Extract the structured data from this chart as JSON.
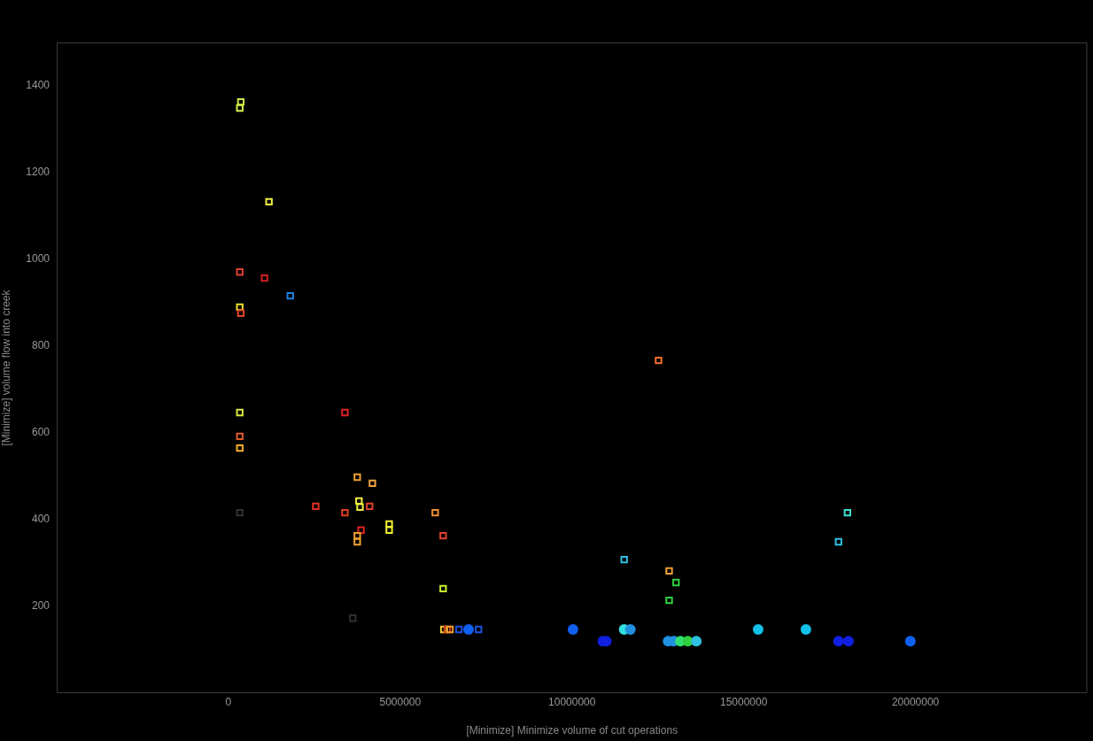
{
  "chart_data": {
    "type": "scatter",
    "xlabel": "[Minimize] Minimize volume of cut operations",
    "ylabel": "[Minimize] volume flow into creek",
    "xlim": [
      -5000000,
      25000000
    ],
    "ylim": [
      0,
      1500
    ],
    "xticks": [
      0,
      5000000,
      10000000,
      15000000,
      20000000
    ],
    "yticks": [
      200,
      400,
      600,
      800,
      1000,
      1200,
      1400
    ],
    "legend": false,
    "grid": false,
    "series": [
      {
        "marker": "square",
        "x": [
          360000,
          330000,
          1180000,
          330000,
          1050000,
          1800000,
          330000,
          360000,
          330000,
          330000,
          330000,
          330000,
          3390000,
          3750000,
          4190000,
          2540000,
          3390000,
          3800000,
          3830000,
          4110000,
          3860000,
          3750000,
          3750000,
          4680000,
          4680000,
          6020000,
          6250000,
          6250000,
          3620000,
          12520000,
          11520000,
          12830000,
          13030000,
          12830000,
          18020000,
          17760000,
          6270000,
          6370000,
          6450000,
          6710000,
          7280000
        ],
        "values": [
          1363,
          1349,
          1133,
          971,
          957,
          916,
          890,
          876,
          647,
          592,
          565,
          416,
          647,
          498,
          484,
          431,
          416,
          443,
          429,
          431,
          376,
          363,
          349,
          390,
          376,
          416,
          363,
          241,
          173,
          767,
          308,
          282,
          255,
          214,
          416,
          349,
          147,
          147,
          147,
          147,
          147
        ],
        "colors": [
          "#d4e84a",
          "#d8f04a",
          "#f0f040",
          "#e04030",
          "#d02020",
          "#2080e0",
          "#f0e030",
          "#e04428",
          "#d8e840",
          "#e05a30",
          "#f0b030",
          "#303030",
          "#e02020",
          "#f0a030",
          "#f0a040",
          "#e03020",
          "#e04020",
          "#f0f040",
          "#f0f040",
          "#e04030",
          "#e02020",
          "#f0a030",
          "#f0a030",
          "#f0f030",
          "#f0f030",
          "#f09030",
          "#e04030",
          "#c8f030",
          "#303030",
          "#f07030",
          "#30c0e0",
          "#f0a030",
          "#30d040",
          "#30d040",
          "#40e0d0",
          "#30c0e0",
          "#f0d030",
          "#e04020",
          "#f0a030",
          "#2050e0",
          "#2050e0"
        ]
      },
      {
        "marker": "circle",
        "x": [
          6990000,
          10030000,
          10900000,
          11000000,
          11520000,
          11700000,
          12800000,
          12960000,
          13160000,
          13370000,
          13620000,
          15420000,
          16810000,
          17760000,
          18050000,
          19850000
        ],
        "values": [
          147,
          147,
          120,
          120,
          147,
          147,
          120,
          120,
          120,
          120,
          120,
          147,
          147,
          120,
          120,
          120
        ],
        "colors": [
          "#1060f0",
          "#1060f0",
          "#1020e0",
          "#1020e0",
          "#30e0e0",
          "#2090e0",
          "#2090e0",
          "#2090e0",
          "#30e070",
          "#30d040",
          "#30c0e0",
          "#10c0e8",
          "#10c0e8",
          "#1020e0",
          "#1020e0",
          "#1060f0"
        ]
      }
    ]
  }
}
